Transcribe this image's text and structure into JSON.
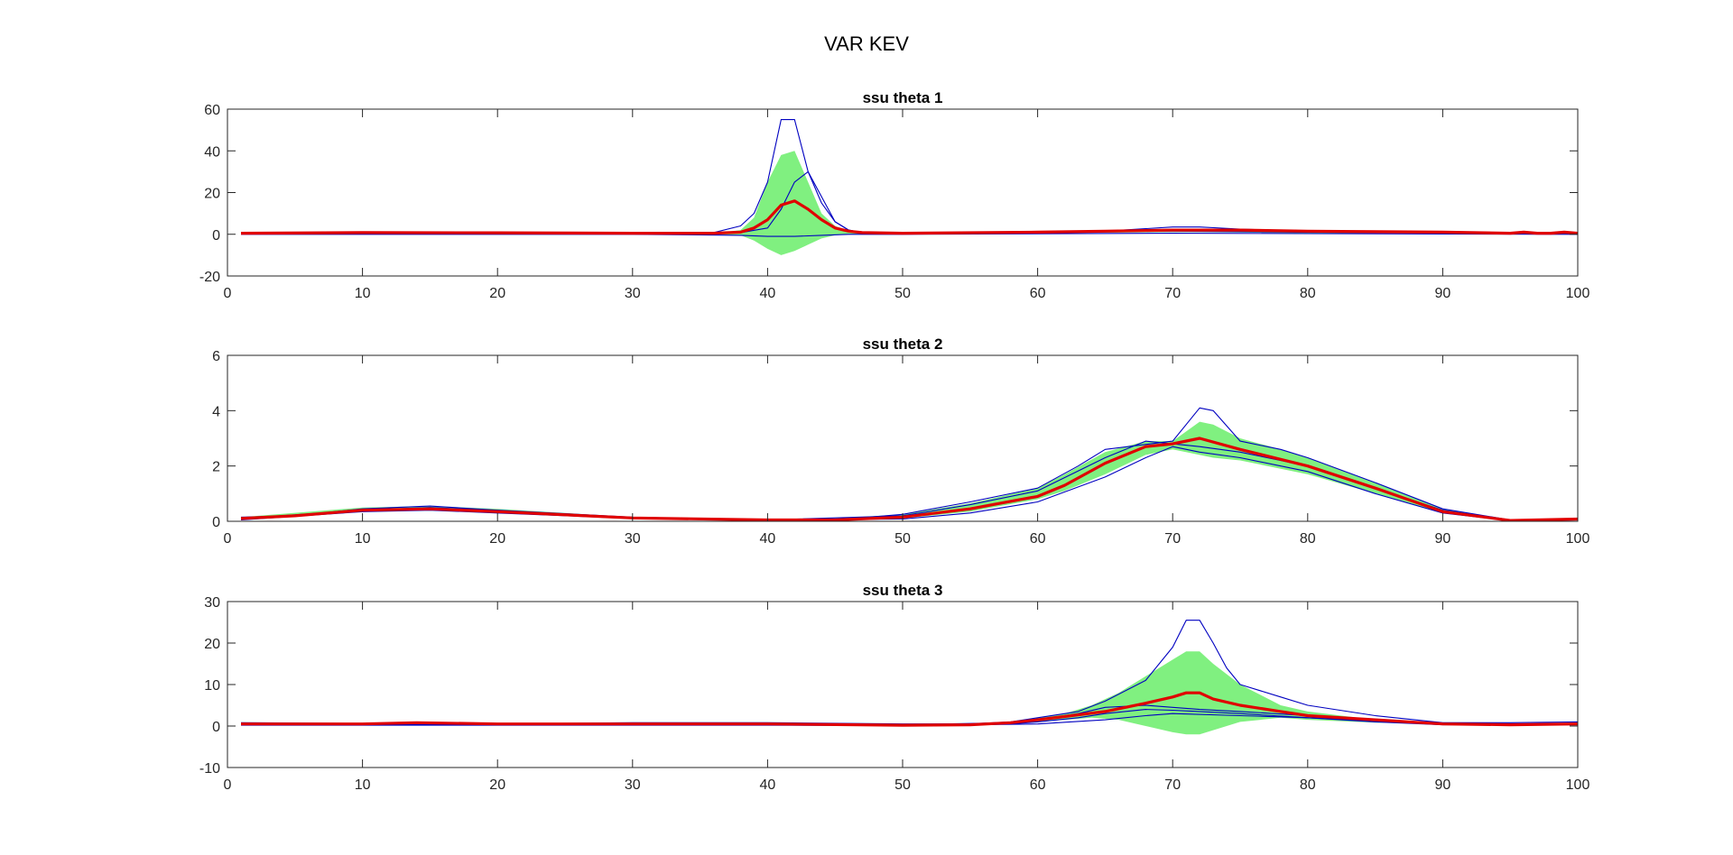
{
  "figure": {
    "title": "VAR KEV"
  },
  "colors": {
    "band": "#80f080",
    "band_edge": "#4fe04f",
    "median": "#e00000",
    "bound": "#0000c0",
    "axis": "#262626"
  },
  "chart_data": [
    {
      "type": "line",
      "title": "ssu theta 1",
      "xlim": [
        0,
        100
      ],
      "ylim": [
        -20,
        60
      ],
      "xticks": [
        0,
        10,
        20,
        30,
        40,
        50,
        60,
        70,
        80,
        90,
        100
      ],
      "yticks": [
        -20,
        0,
        20,
        40,
        60
      ],
      "band": {
        "x": [
          1,
          10,
          20,
          30,
          36,
          38,
          39,
          40,
          41,
          42,
          43,
          44,
          45,
          46,
          47,
          50,
          60,
          70,
          72,
          80,
          90,
          100
        ],
        "lower": [
          0,
          0,
          0,
          0,
          0,
          -0.5,
          -3,
          -7,
          -10,
          -8,
          -5,
          -2,
          -0.5,
          0,
          0,
          0,
          0.5,
          1,
          1,
          0.5,
          0.5,
          0
        ],
        "upper": [
          0.5,
          0.5,
          0.5,
          0.5,
          0.5,
          2,
          8,
          25,
          38,
          40,
          25,
          10,
          4,
          1.5,
          0.8,
          0.5,
          0.8,
          2,
          2,
          1,
          0.8,
          0.5
        ]
      },
      "series": [
        {
          "role": "median",
          "x": [
            1,
            10,
            20,
            30,
            36,
            38,
            39,
            40,
            41,
            42,
            43,
            44,
            45,
            46,
            47,
            50,
            60,
            65,
            70,
            75,
            80,
            90,
            95,
            96,
            97,
            98,
            99,
            100
          ],
          "y": [
            0.5,
            0.8,
            0.7,
            0.5,
            0.5,
            1,
            3,
            7,
            14,
            16,
            12,
            7,
            3,
            1.5,
            0.8,
            0.5,
            1,
            1.5,
            2,
            2,
            1.5,
            1,
            0.5,
            1,
            0.5,
            0.5,
            1,
            0.5
          ]
        },
        {
          "role": "upper",
          "x": [
            1,
            10,
            20,
            30,
            36,
            38,
            39,
            40,
            41,
            42,
            43,
            44,
            45,
            46,
            47,
            50,
            60,
            65,
            70,
            72,
            75,
            80,
            90,
            100
          ],
          "y": [
            0.5,
            0.8,
            0.7,
            0.5,
            0.8,
            4,
            10,
            25,
            55,
            55,
            30,
            15,
            6,
            2,
            0.8,
            0.5,
            1,
            1.5,
            3.5,
            3.5,
            2.5,
            1.5,
            1,
            0.5
          ]
        },
        {
          "role": "lower",
          "x": [
            1,
            10,
            20,
            30,
            38,
            40,
            41,
            42,
            43,
            44,
            45,
            46,
            47,
            50,
            60,
            70,
            80,
            90,
            100
          ],
          "y": [
            0.5,
            0.6,
            0.5,
            0.5,
            0.8,
            3,
            12,
            25,
            30,
            18,
            6,
            2,
            0.8,
            0.5,
            1,
            1.5,
            1,
            0.8,
            0.5
          ]
        },
        {
          "role": "lower",
          "x": [
            1,
            10,
            30,
            38,
            40,
            42,
            44,
            46,
            50,
            70,
            100
          ],
          "y": [
            0,
            0,
            0,
            -0.5,
            -1,
            -1,
            -0.5,
            0,
            0,
            0.5,
            0
          ]
        }
      ]
    },
    {
      "type": "line",
      "title": "ssu theta 2",
      "xlim": [
        0,
        100
      ],
      "ylim": [
        0,
        6
      ],
      "xticks": [
        0,
        10,
        20,
        30,
        40,
        50,
        60,
        70,
        80,
        90,
        100
      ],
      "yticks": [
        0,
        2,
        4,
        6
      ],
      "band": {
        "x": [
          1,
          10,
          15,
          20,
          30,
          40,
          45,
          50,
          55,
          60,
          62,
          65,
          68,
          70,
          72,
          73,
          75,
          78,
          80,
          85,
          90,
          95,
          100
        ],
        "lower": [
          0.05,
          0.35,
          0.4,
          0.3,
          0.1,
          0.05,
          0.05,
          0.1,
          0.35,
          0.8,
          1.1,
          1.7,
          2.4,
          2.6,
          2.4,
          2.3,
          2.2,
          1.9,
          1.7,
          1.0,
          0.3,
          0.02,
          0.05
        ],
        "upper": [
          0.15,
          0.5,
          0.55,
          0.45,
          0.15,
          0.08,
          0.1,
          0.25,
          0.65,
          1.2,
          1.7,
          2.5,
          2.9,
          2.9,
          3.6,
          3.5,
          3.0,
          2.6,
          2.3,
          1.4,
          0.45,
          0.05,
          0.1
        ]
      },
      "series": [
        {
          "role": "median",
          "x": [
            1,
            5,
            10,
            15,
            20,
            30,
            40,
            45,
            50,
            55,
            60,
            62,
            65,
            68,
            70,
            72,
            75,
            80,
            85,
            90,
            95,
            100
          ],
          "y": [
            0.1,
            0.2,
            0.4,
            0.45,
            0.35,
            0.12,
            0.05,
            0.05,
            0.15,
            0.45,
            0.9,
            1.3,
            2.1,
            2.7,
            2.8,
            3.0,
            2.6,
            2.0,
            1.2,
            0.35,
            0.03,
            0.08
          ]
        },
        {
          "role": "upper",
          "x": [
            1,
            5,
            10,
            15,
            20,
            30,
            40,
            45,
            50,
            55,
            60,
            63,
            65,
            70,
            71,
            72,
            73,
            75,
            78,
            80,
            85,
            90,
            95,
            100
          ],
          "y": [
            0.15,
            0.2,
            0.45,
            0.55,
            0.4,
            0.15,
            0.05,
            0.05,
            0.25,
            0.7,
            1.2,
            2.0,
            2.6,
            2.9,
            3.5,
            4.1,
            4.0,
            2.9,
            2.6,
            2.3,
            1.4,
            0.45,
            0.05,
            0.1
          ]
        },
        {
          "role": "upper",
          "x": [
            1,
            10,
            15,
            20,
            30,
            40,
            50,
            55,
            60,
            65,
            68,
            70,
            72,
            75,
            80,
            85,
            90,
            95,
            100
          ],
          "y": [
            0.1,
            0.4,
            0.5,
            0.38,
            0.12,
            0.05,
            0.2,
            0.6,
            1.1,
            2.3,
            2.9,
            2.8,
            2.7,
            2.5,
            2.0,
            1.2,
            0.4,
            0.03,
            0.08
          ]
        },
        {
          "role": "lower",
          "x": [
            1,
            10,
            15,
            20,
            30,
            40,
            50,
            55,
            60,
            65,
            68,
            70,
            72,
            75,
            80,
            85,
            90,
            95,
            100
          ],
          "y": [
            0.05,
            0.35,
            0.4,
            0.3,
            0.1,
            0.05,
            0.08,
            0.3,
            0.7,
            1.6,
            2.3,
            2.7,
            2.5,
            2.3,
            1.8,
            1.0,
            0.3,
            0.02,
            0.05
          ]
        }
      ]
    },
    {
      "type": "line",
      "title": "ssu theta 3",
      "xlim": [
        0,
        100
      ],
      "ylim": [
        -10,
        30
      ],
      "xticks": [
        0,
        10,
        20,
        30,
        40,
        50,
        60,
        70,
        80,
        90,
        100
      ],
      "yticks": [
        -10,
        0,
        10,
        20,
        30
      ],
      "band": {
        "x": [
          1,
          10,
          20,
          30,
          40,
          50,
          55,
          58,
          60,
          62,
          64,
          66,
          68,
          70,
          71,
          72,
          73,
          75,
          78,
          80,
          85,
          90,
          95,
          100
        ],
        "lower": [
          0.5,
          0.5,
          0.5,
          0.5,
          0.5,
          0.2,
          0.3,
          0.5,
          1,
          1.5,
          2,
          1.5,
          0,
          -1.5,
          -2,
          -2,
          -1,
          1,
          2,
          1.5,
          0.8,
          0.5,
          0.3,
          0.5
        ],
        "upper": [
          0.5,
          0.5,
          0.5,
          0.5,
          0.5,
          0.3,
          0.5,
          1,
          2,
          3,
          5,
          8,
          12,
          16,
          18,
          18,
          15,
          10,
          5,
          3.5,
          1.5,
          0.5,
          0.3,
          0.5
        ]
      },
      "series": [
        {
          "role": "median",
          "x": [
            1,
            10,
            14,
            20,
            30,
            40,
            50,
            55,
            58,
            60,
            65,
            68,
            70,
            71,
            72,
            73,
            75,
            78,
            80,
            85,
            90,
            95,
            100
          ],
          "y": [
            0.5,
            0.5,
            0.8,
            0.5,
            0.5,
            0.5,
            0.2,
            0.3,
            0.8,
            1.5,
            3.5,
            5.5,
            7,
            8,
            8,
            6.5,
            5,
            3.5,
            2.5,
            1.5,
            0.5,
            0.3,
            0.5
          ]
        },
        {
          "role": "upper",
          "x": [
            1,
            10,
            20,
            30,
            40,
            50,
            55,
            58,
            60,
            63,
            65,
            68,
            70,
            71,
            72,
            73,
            74,
            75,
            78,
            80,
            85,
            90,
            95,
            100
          ],
          "y": [
            0.8,
            0.6,
            0.5,
            0.8,
            0.8,
            0.5,
            0.5,
            1,
            2,
            3.5,
            6,
            11,
            19,
            25.5,
            25.5,
            20,
            14,
            10,
            7,
            5,
            2.5,
            0.8,
            0.8,
            1
          ]
        },
        {
          "role": "upper",
          "x": [
            1,
            10,
            20,
            40,
            50,
            58,
            60,
            63,
            65,
            68,
            70,
            72,
            75,
            80,
            85,
            90,
            100
          ],
          "y": [
            0.5,
            0.5,
            0.5,
            0.5,
            0.3,
            0.8,
            1.5,
            3,
            4.5,
            5,
            4.5,
            4,
            3.5,
            2.5,
            1.5,
            0.5,
            0.5
          ]
        },
        {
          "role": "lower",
          "x": [
            1,
            10,
            20,
            40,
            50,
            58,
            60,
            63,
            65,
            68,
            70,
            72,
            75,
            80,
            85,
            90,
            100
          ],
          "y": [
            0.3,
            0.3,
            0.3,
            0.3,
            0.2,
            0.5,
            1,
            2,
            3,
            4,
            3.8,
            3.5,
            3,
            2,
            1,
            0.3,
            0.5
          ]
        },
        {
          "role": "lower",
          "x": [
            1,
            20,
            40,
            50,
            60,
            65,
            68,
            70,
            75,
            80,
            90,
            100
          ],
          "y": [
            0.2,
            0.2,
            0.2,
            0.1,
            0.5,
            1.5,
            2.5,
            3,
            2.5,
            2,
            0.5,
            0.3
          ]
        }
      ]
    }
  ]
}
